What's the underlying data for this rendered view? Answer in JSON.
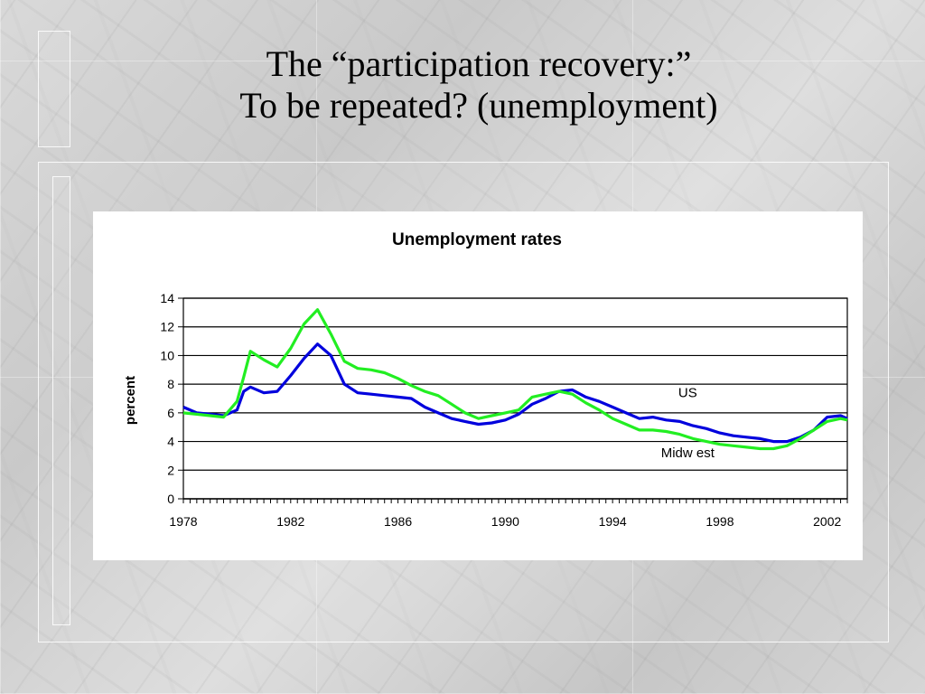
{
  "slide": {
    "title_line1": "The “participation recovery:”",
    "title_line2": "To be repeated? (unemployment)"
  },
  "chart_data": {
    "type": "line",
    "title": "Unemployment rates",
    "ylabel": "percent",
    "xlabel": "",
    "xlim": [
      1978,
      2002.75
    ],
    "ylim": [
      0,
      14
    ],
    "x_ticks": [
      1978,
      1982,
      1986,
      1990,
      1994,
      1998,
      2002
    ],
    "y_ticks": [
      0,
      2,
      4,
      6,
      8,
      10,
      12,
      14
    ],
    "grid": true,
    "series": [
      {
        "name": "US",
        "color": "#0000dd",
        "points": [
          [
            1978,
            6.4
          ],
          [
            1978.5,
            6.0
          ],
          [
            1979,
            5.9
          ],
          [
            1979.5,
            5.8
          ],
          [
            1980,
            6.2
          ],
          [
            1980.25,
            7.5
          ],
          [
            1980.5,
            7.8
          ],
          [
            1981,
            7.4
          ],
          [
            1981.5,
            7.5
          ],
          [
            1982,
            8.6
          ],
          [
            1982.5,
            9.8
          ],
          [
            1983,
            10.8
          ],
          [
            1983.5,
            10.0
          ],
          [
            1984,
            8.0
          ],
          [
            1984.5,
            7.4
          ],
          [
            1985,
            7.3
          ],
          [
            1985.5,
            7.2
          ],
          [
            1986,
            7.1
          ],
          [
            1986.5,
            7.0
          ],
          [
            1987,
            6.4
          ],
          [
            1987.5,
            6.0
          ],
          [
            1988,
            5.6
          ],
          [
            1988.5,
            5.4
          ],
          [
            1989,
            5.2
          ],
          [
            1989.5,
            5.3
          ],
          [
            1990,
            5.5
          ],
          [
            1990.5,
            5.9
          ],
          [
            1991,
            6.6
          ],
          [
            1991.5,
            7.0
          ],
          [
            1992,
            7.5
          ],
          [
            1992.5,
            7.6
          ],
          [
            1993,
            7.1
          ],
          [
            1993.5,
            6.8
          ],
          [
            1994,
            6.4
          ],
          [
            1994.5,
            6.0
          ],
          [
            1995,
            5.6
          ],
          [
            1995.5,
            5.7
          ],
          [
            1996,
            5.5
          ],
          [
            1996.5,
            5.4
          ],
          [
            1997,
            5.1
          ],
          [
            1997.5,
            4.9
          ],
          [
            1998,
            4.6
          ],
          [
            1998.5,
            4.4
          ],
          [
            1999,
            4.3
          ],
          [
            1999.5,
            4.2
          ],
          [
            2000,
            4.0
          ],
          [
            2000.5,
            4.0
          ],
          [
            2001,
            4.3
          ],
          [
            2001.5,
            4.8
          ],
          [
            2002,
            5.7
          ],
          [
            2002.5,
            5.8
          ],
          [
            2002.75,
            5.6
          ]
        ]
      },
      {
        "name": "Midwest",
        "color": "#22ee22",
        "points": [
          [
            1978,
            6.0
          ],
          [
            1978.5,
            5.9
          ],
          [
            1979,
            5.8
          ],
          [
            1979.5,
            5.7
          ],
          [
            1980,
            6.8
          ],
          [
            1980.25,
            8.5
          ],
          [
            1980.5,
            10.3
          ],
          [
            1981,
            9.7
          ],
          [
            1981.5,
            9.2
          ],
          [
            1982,
            10.5
          ],
          [
            1982.5,
            12.2
          ],
          [
            1983,
            13.2
          ],
          [
            1983.5,
            11.5
          ],
          [
            1984,
            9.6
          ],
          [
            1984.5,
            9.1
          ],
          [
            1985,
            9.0
          ],
          [
            1985.5,
            8.8
          ],
          [
            1986,
            8.4
          ],
          [
            1986.5,
            7.9
          ],
          [
            1987,
            7.5
          ],
          [
            1987.5,
            7.2
          ],
          [
            1988,
            6.6
          ],
          [
            1988.5,
            6.0
          ],
          [
            1989,
            5.6
          ],
          [
            1989.5,
            5.8
          ],
          [
            1990,
            6.0
          ],
          [
            1990.5,
            6.2
          ],
          [
            1991,
            7.1
          ],
          [
            1991.5,
            7.3
          ],
          [
            1992,
            7.5
          ],
          [
            1992.5,
            7.3
          ],
          [
            1993,
            6.7
          ],
          [
            1993.5,
            6.2
          ],
          [
            1994,
            5.6
          ],
          [
            1994.5,
            5.2
          ],
          [
            1995,
            4.8
          ],
          [
            1995.5,
            4.8
          ],
          [
            1996,
            4.7
          ],
          [
            1996.5,
            4.5
          ],
          [
            1997,
            4.2
          ],
          [
            1997.5,
            4.0
          ],
          [
            1998,
            3.8
          ],
          [
            1998.5,
            3.7
          ],
          [
            1999,
            3.6
          ],
          [
            1999.5,
            3.5
          ],
          [
            2000,
            3.5
          ],
          [
            2000.5,
            3.7
          ],
          [
            2001,
            4.2
          ],
          [
            2001.5,
            4.8
          ],
          [
            2002,
            5.4
          ],
          [
            2002.5,
            5.6
          ],
          [
            2002.75,
            5.5
          ]
        ]
      }
    ],
    "annotations": [
      {
        "text": "US",
        "x": 1996.8,
        "y": 7.1
      },
      {
        "text": "Midw est",
        "x": 1996.8,
        "y": 2.9
      }
    ]
  }
}
